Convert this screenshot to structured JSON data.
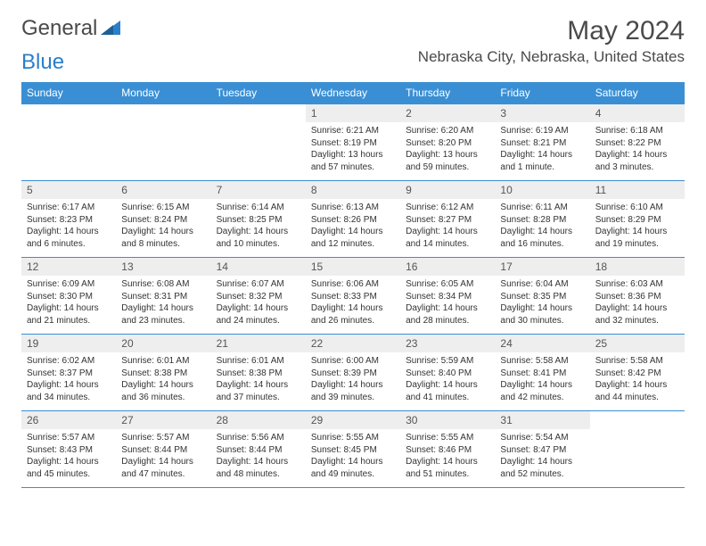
{
  "brand": {
    "part1": "General",
    "part2": "Blue"
  },
  "title": "May 2024",
  "location": "Nebraska City, Nebraska, United States",
  "colors": {
    "header_bg": "#3a8fd4",
    "header_text": "#ffffff",
    "day_number_bg": "#eeeeee",
    "border": "#3a8fd4",
    "text": "#333333",
    "title_text": "#4a4a4a"
  },
  "weekdays": [
    "Sunday",
    "Monday",
    "Tuesday",
    "Wednesday",
    "Thursday",
    "Friday",
    "Saturday"
  ],
  "weeks": [
    [
      null,
      null,
      null,
      {
        "d": "1",
        "sr": "6:21 AM",
        "ss": "8:19 PM",
        "dl": "13 hours and 57 minutes."
      },
      {
        "d": "2",
        "sr": "6:20 AM",
        "ss": "8:20 PM",
        "dl": "13 hours and 59 minutes."
      },
      {
        "d": "3",
        "sr": "6:19 AM",
        "ss": "8:21 PM",
        "dl": "14 hours and 1 minute."
      },
      {
        "d": "4",
        "sr": "6:18 AM",
        "ss": "8:22 PM",
        "dl": "14 hours and 3 minutes."
      }
    ],
    [
      {
        "d": "5",
        "sr": "6:17 AM",
        "ss": "8:23 PM",
        "dl": "14 hours and 6 minutes."
      },
      {
        "d": "6",
        "sr": "6:15 AM",
        "ss": "8:24 PM",
        "dl": "14 hours and 8 minutes."
      },
      {
        "d": "7",
        "sr": "6:14 AM",
        "ss": "8:25 PM",
        "dl": "14 hours and 10 minutes."
      },
      {
        "d": "8",
        "sr": "6:13 AM",
        "ss": "8:26 PM",
        "dl": "14 hours and 12 minutes."
      },
      {
        "d": "9",
        "sr": "6:12 AM",
        "ss": "8:27 PM",
        "dl": "14 hours and 14 minutes."
      },
      {
        "d": "10",
        "sr": "6:11 AM",
        "ss": "8:28 PM",
        "dl": "14 hours and 16 minutes."
      },
      {
        "d": "11",
        "sr": "6:10 AM",
        "ss": "8:29 PM",
        "dl": "14 hours and 19 minutes."
      }
    ],
    [
      {
        "d": "12",
        "sr": "6:09 AM",
        "ss": "8:30 PM",
        "dl": "14 hours and 21 minutes."
      },
      {
        "d": "13",
        "sr": "6:08 AM",
        "ss": "8:31 PM",
        "dl": "14 hours and 23 minutes."
      },
      {
        "d": "14",
        "sr": "6:07 AM",
        "ss": "8:32 PM",
        "dl": "14 hours and 24 minutes."
      },
      {
        "d": "15",
        "sr": "6:06 AM",
        "ss": "8:33 PM",
        "dl": "14 hours and 26 minutes."
      },
      {
        "d": "16",
        "sr": "6:05 AM",
        "ss": "8:34 PM",
        "dl": "14 hours and 28 minutes."
      },
      {
        "d": "17",
        "sr": "6:04 AM",
        "ss": "8:35 PM",
        "dl": "14 hours and 30 minutes."
      },
      {
        "d": "18",
        "sr": "6:03 AM",
        "ss": "8:36 PM",
        "dl": "14 hours and 32 minutes."
      }
    ],
    [
      {
        "d": "19",
        "sr": "6:02 AM",
        "ss": "8:37 PM",
        "dl": "14 hours and 34 minutes."
      },
      {
        "d": "20",
        "sr": "6:01 AM",
        "ss": "8:38 PM",
        "dl": "14 hours and 36 minutes."
      },
      {
        "d": "21",
        "sr": "6:01 AM",
        "ss": "8:38 PM",
        "dl": "14 hours and 37 minutes."
      },
      {
        "d": "22",
        "sr": "6:00 AM",
        "ss": "8:39 PM",
        "dl": "14 hours and 39 minutes."
      },
      {
        "d": "23",
        "sr": "5:59 AM",
        "ss": "8:40 PM",
        "dl": "14 hours and 41 minutes."
      },
      {
        "d": "24",
        "sr": "5:58 AM",
        "ss": "8:41 PM",
        "dl": "14 hours and 42 minutes."
      },
      {
        "d": "25",
        "sr": "5:58 AM",
        "ss": "8:42 PM",
        "dl": "14 hours and 44 minutes."
      }
    ],
    [
      {
        "d": "26",
        "sr": "5:57 AM",
        "ss": "8:43 PM",
        "dl": "14 hours and 45 minutes."
      },
      {
        "d": "27",
        "sr": "5:57 AM",
        "ss": "8:44 PM",
        "dl": "14 hours and 47 minutes."
      },
      {
        "d": "28",
        "sr": "5:56 AM",
        "ss": "8:44 PM",
        "dl": "14 hours and 48 minutes."
      },
      {
        "d": "29",
        "sr": "5:55 AM",
        "ss": "8:45 PM",
        "dl": "14 hours and 49 minutes."
      },
      {
        "d": "30",
        "sr": "5:55 AM",
        "ss": "8:46 PM",
        "dl": "14 hours and 51 minutes."
      },
      {
        "d": "31",
        "sr": "5:54 AM",
        "ss": "8:47 PM",
        "dl": "14 hours and 52 minutes."
      },
      null
    ]
  ],
  "labels": {
    "sunrise": "Sunrise:",
    "sunset": "Sunset:",
    "daylight": "Daylight:"
  }
}
